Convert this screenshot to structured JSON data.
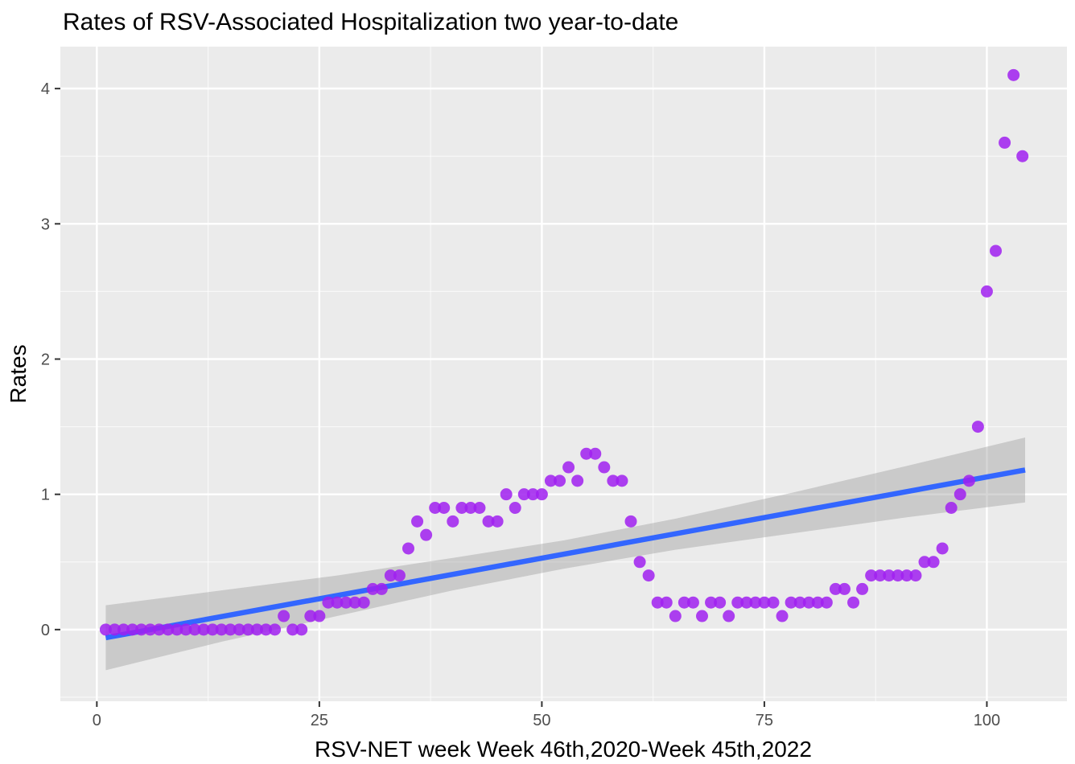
{
  "title": "Rates of RSV-Associated Hospitalization two year-to-date",
  "chart_data": {
    "type": "scatter",
    "title": "Rates of RSV-Associated Hospitalization two year-to-date",
    "xlabel": "RSV-NET week Week 46th,2020-Week 45th,2022",
    "ylabel": "Rates",
    "x": [
      1,
      2,
      3,
      4,
      5,
      6,
      7,
      8,
      9,
      10,
      11,
      12,
      13,
      14,
      15,
      16,
      17,
      18,
      19,
      20,
      21,
      22,
      23,
      24,
      25,
      26,
      27,
      28,
      29,
      30,
      31,
      32,
      33,
      34,
      35,
      36,
      37,
      38,
      39,
      40,
      41,
      42,
      43,
      44,
      45,
      46,
      47,
      48,
      49,
      50,
      51,
      52,
      53,
      54,
      55,
      56,
      57,
      58,
      59,
      60,
      61,
      62,
      63,
      64,
      65,
      66,
      67,
      68,
      69,
      70,
      71,
      72,
      73,
      74,
      75,
      76,
      77,
      78,
      79,
      80,
      81,
      82,
      83,
      84,
      85,
      86,
      87,
      88,
      89,
      90,
      91,
      92,
      93,
      94,
      95,
      96,
      97,
      98,
      99,
      100,
      101,
      102,
      103,
      104
    ],
    "y": [
      0,
      0,
      0,
      0,
      0,
      0,
      0,
      0,
      0,
      0,
      0,
      0,
      0,
      0,
      0,
      0,
      0,
      0,
      0,
      0,
      0.1,
      0,
      0,
      0.1,
      0.1,
      0.2,
      0.2,
      0.2,
      0.2,
      0.2,
      0.3,
      0.3,
      0.4,
      0.4,
      0.6,
      0.8,
      0.7,
      0.9,
      0.9,
      0.8,
      0.9,
      0.9,
      0.9,
      0.8,
      0.8,
      1,
      0.9,
      1,
      1,
      1,
      1.1,
      1.1,
      1.2,
      1.1,
      1.3,
      1.3,
      1.2,
      1.1,
      1.1,
      0.8,
      0.5,
      0.4,
      0.2,
      0.2,
      0.1,
      0.2,
      0.2,
      0.1,
      0.2,
      0.2,
      0.1,
      0.2,
      0.2,
      0.2,
      0.2,
      0.2,
      0.1,
      0.2,
      0.2,
      0.2,
      0.2,
      0.2,
      0.3,
      0.3,
      0.2,
      0.3,
      0.4,
      0.4,
      0.4,
      0.4,
      0.4,
      0.4,
      0.5,
      0.5,
      0.6,
      0.9,
      1,
      1.1,
      1.5,
      2.5,
      2.8,
      3.6,
      4.1,
      3.5
    ],
    "trend_line": {
      "x": [
        1,
        104.3
      ],
      "y": [
        -0.06,
        1.18
      ],
      "color": "#3366FF"
    },
    "confidence_band": {
      "x": [
        1,
        14,
        27,
        40,
        52.5,
        65,
        78,
        91,
        104.3
      ],
      "upper": [
        0.18,
        0.29,
        0.4,
        0.53,
        0.66,
        0.82,
        1.01,
        1.21,
        1.42
      ],
      "lower": [
        -0.3,
        -0.09,
        0.1,
        0.29,
        0.45,
        0.59,
        0.71,
        0.83,
        0.94
      ],
      "color": "#999999",
      "opacity": 0.4
    },
    "x_ticks": [
      0,
      25,
      50,
      75,
      100
    ],
    "y_ticks": [
      0,
      1,
      2,
      3,
      4
    ],
    "x_minor_ticks": [
      12.5,
      37.5,
      62.5,
      87.5
    ],
    "y_minor_ticks": [
      -0.5,
      0.5,
      1.5,
      2.5,
      3.5
    ],
    "xlim": [
      -4.1,
      109.0
    ],
    "ylim": [
      -0.53,
      4.31
    ],
    "grid": true,
    "legend": "none",
    "point_color": "#A020F0",
    "point_opacity": 0.85,
    "point_radius": 7.5,
    "panel_background": "#EBEBEB",
    "grid_color": "#FFFFFF",
    "tick_color": "#333333",
    "tick_label_color": "#4d4d4d"
  }
}
